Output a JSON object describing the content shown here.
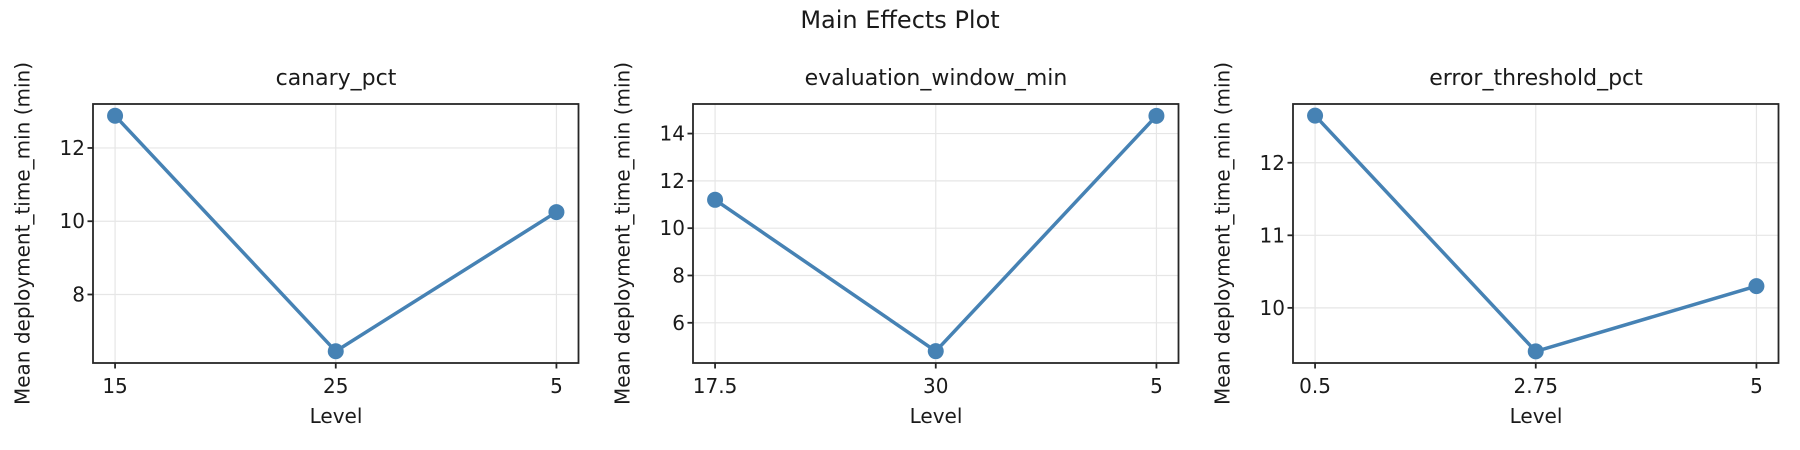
{
  "figure": {
    "title": "Main Effects Plot",
    "background": "#ffffff",
    "line_color": "#4682b4",
    "grid_color": "#e6e6e6",
    "spine_color": "#262626",
    "text_color": "#1a1a1a"
  },
  "chart_data": [
    {
      "type": "line",
      "title": "canary_pct",
      "xlabel": "Level",
      "ylabel": "Mean deployment_time_min (min)",
      "categories": [
        "15",
        "25",
        "5"
      ],
      "values": [
        12.88,
        6.45,
        10.25
      ],
      "yticks": [
        8,
        10,
        12
      ],
      "ylim": [
        6.13,
        13.2
      ],
      "grid": true,
      "legend": "none",
      "marker": "circle"
    },
    {
      "type": "line",
      "title": "evaluation_window_min",
      "xlabel": "Level",
      "ylabel": "Mean deployment_time_min (min)",
      "categories": [
        "17.5",
        "30",
        "5"
      ],
      "values": [
        11.2,
        4.8,
        14.75
      ],
      "yticks": [
        6,
        8,
        10,
        12,
        14
      ],
      "ylim": [
        4.3,
        15.25
      ],
      "grid": true,
      "legend": "none",
      "marker": "circle"
    },
    {
      "type": "line",
      "title": "error_threshold_pct",
      "xlabel": "Level",
      "ylabel": "Mean deployment_time_min (min)",
      "categories": [
        "0.5",
        "2.75",
        "5"
      ],
      "values": [
        12.65,
        9.4,
        10.3
      ],
      "yticks": [
        10,
        11,
        12
      ],
      "ylim": [
        9.24,
        12.81
      ],
      "grid": true,
      "legend": "none",
      "marker": "circle"
    }
  ]
}
